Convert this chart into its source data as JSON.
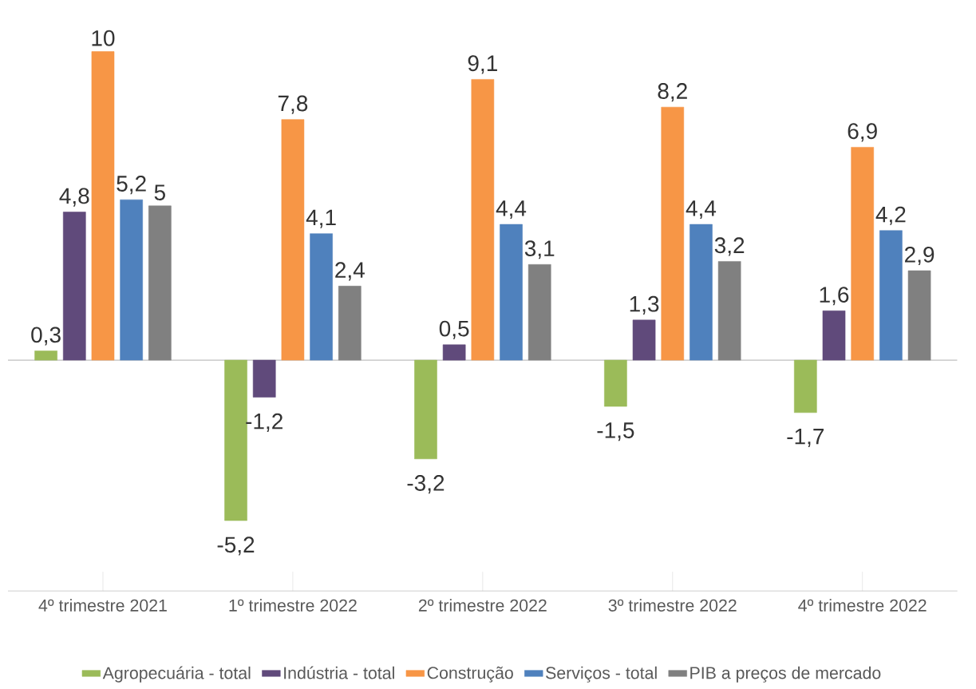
{
  "chart_data": {
    "type": "bar",
    "categories": [
      "4º trimestre 2021",
      "1º trimestre 2022",
      "2º trimestre 2022",
      "3º trimestre 2022",
      "4º trimestre 2022"
    ],
    "series": [
      {
        "name": "Agropecuária - total",
        "color": "#9bbb59",
        "values": [
          0.3,
          -5.2,
          -3.2,
          -1.5,
          -1.7
        ],
        "value_labels": [
          "0,3",
          "-5,2",
          "-3,2",
          "-1,5",
          "-1,7"
        ]
      },
      {
        "name": "Indústria - total",
        "color": "#604a7b",
        "values": [
          4.8,
          -1.2,
          0.5,
          1.3,
          1.6
        ],
        "value_labels": [
          "4,8",
          "-1,2",
          "0,5",
          "1,3",
          "1,6"
        ]
      },
      {
        "name": "Construção",
        "color": "#f79646",
        "values": [
          10,
          7.8,
          9.1,
          8.2,
          6.9
        ],
        "value_labels": [
          "10",
          "7,8",
          "9,1",
          "8,2",
          "6,9"
        ]
      },
      {
        "name": "Serviços - total",
        "color": "#4f81bd",
        "values": [
          5.2,
          4.1,
          4.4,
          4.4,
          4.2
        ],
        "value_labels": [
          "5,2",
          "4,1",
          "4,4",
          "4,4",
          "4,2"
        ]
      },
      {
        "name": "PIB a preços de mercado",
        "color": "#808080",
        "values": [
          5,
          2.4,
          3.1,
          3.2,
          2.9
        ],
        "value_labels": [
          "5",
          "2,4",
          "3,1",
          "3,2",
          "2,9"
        ]
      }
    ],
    "legend": "bottom"
  }
}
